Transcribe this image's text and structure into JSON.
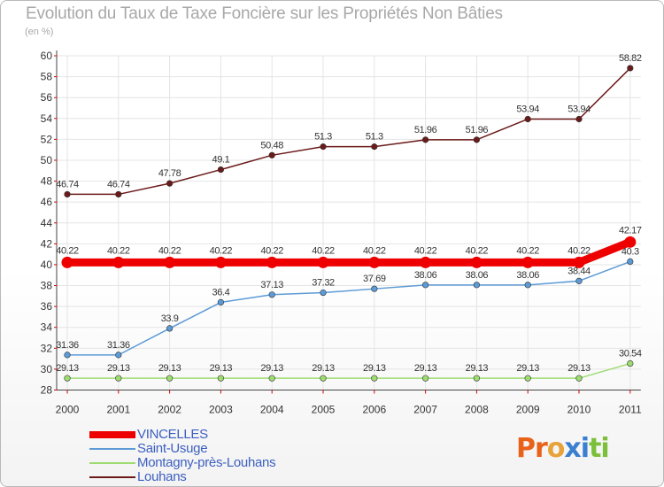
{
  "title": "Evolution du Taux de Taxe Foncière sur les Propriétés Non Bâties",
  "subtitle": "(en %)",
  "logo": {
    "letters": [
      "P",
      "r",
      "o",
      "x",
      "i",
      "t",
      "i"
    ],
    "colors": [
      "#e8621a",
      "#e8621a",
      "#e8a23a",
      "#3a7fd0",
      "#3a7fd0",
      "#7cbf3a",
      "#7cbf3a"
    ]
  },
  "chart_data": {
    "type": "line",
    "x": [
      "2000",
      "2001",
      "2002",
      "2003",
      "2004",
      "2005",
      "2006",
      "2007",
      "2008",
      "2009",
      "2010",
      "2011"
    ],
    "ylim": [
      28,
      60
    ],
    "yticks": [
      28,
      30,
      32,
      34,
      36,
      38,
      40,
      42,
      44,
      46,
      48,
      50,
      52,
      54,
      56,
      58,
      60
    ],
    "series": [
      {
        "name": "Louhans",
        "color": "#6b1a1a",
        "values": [
          46.74,
          46.74,
          47.78,
          49.1,
          50.48,
          51.3,
          51.3,
          51.96,
          51.96,
          53.94,
          53.94,
          58.82
        ],
        "labels": [
          "46.74",
          "46.74",
          "47.78",
          "49.1",
          "50.48",
          "51.3",
          "51.3",
          "51.96",
          "51.96",
          "53.94",
          "53.94",
          "58.82"
        ]
      },
      {
        "name": "Montagny-près-Louhans",
        "color": "#9edc72",
        "values": [
          29.13,
          29.13,
          29.13,
          29.13,
          29.13,
          29.13,
          29.13,
          29.13,
          29.13,
          29.13,
          29.13,
          30.54
        ],
        "labels": [
          "29.13",
          "29.13",
          "29.13",
          "29.13",
          "29.13",
          "29.13",
          "29.13",
          "29.13",
          "29.13",
          "29.13",
          "29.13",
          "30.54"
        ]
      },
      {
        "name": "Saint-Usuge",
        "color": "#5c9bd6",
        "values": [
          31.36,
          31.36,
          33.9,
          36.4,
          37.13,
          37.32,
          37.69,
          38.06,
          38.06,
          38.06,
          38.44,
          40.3
        ],
        "labels": [
          "31.36",
          "31.36",
          "33.9",
          "36.4",
          "37.13",
          "37.32",
          "37.69",
          "38.06",
          "38.06",
          "38.06",
          "38.44",
          "40.3"
        ]
      },
      {
        "name": "VINCELLES",
        "color": "#ee0000",
        "values": [
          40.22,
          40.22,
          40.22,
          40.22,
          40.22,
          40.22,
          40.22,
          40.22,
          40.22,
          40.22,
          40.22,
          42.17
        ],
        "labels": [
          "40.22",
          "40.22",
          "40.22",
          "40.22",
          "40.22",
          "40.22",
          "40.22",
          "40.22",
          "40.22",
          "40.22",
          "40.22",
          "42.17"
        ]
      }
    ],
    "legend": [
      {
        "name": "VINCELLES",
        "color": "#ee0000"
      },
      {
        "name": "Saint-Usuge",
        "color": "#5c9bd6"
      },
      {
        "name": "Montagny-près-Louhans",
        "color": "#9edc72"
      },
      {
        "name": "Louhans",
        "color": "#6b1a1a"
      }
    ]
  }
}
